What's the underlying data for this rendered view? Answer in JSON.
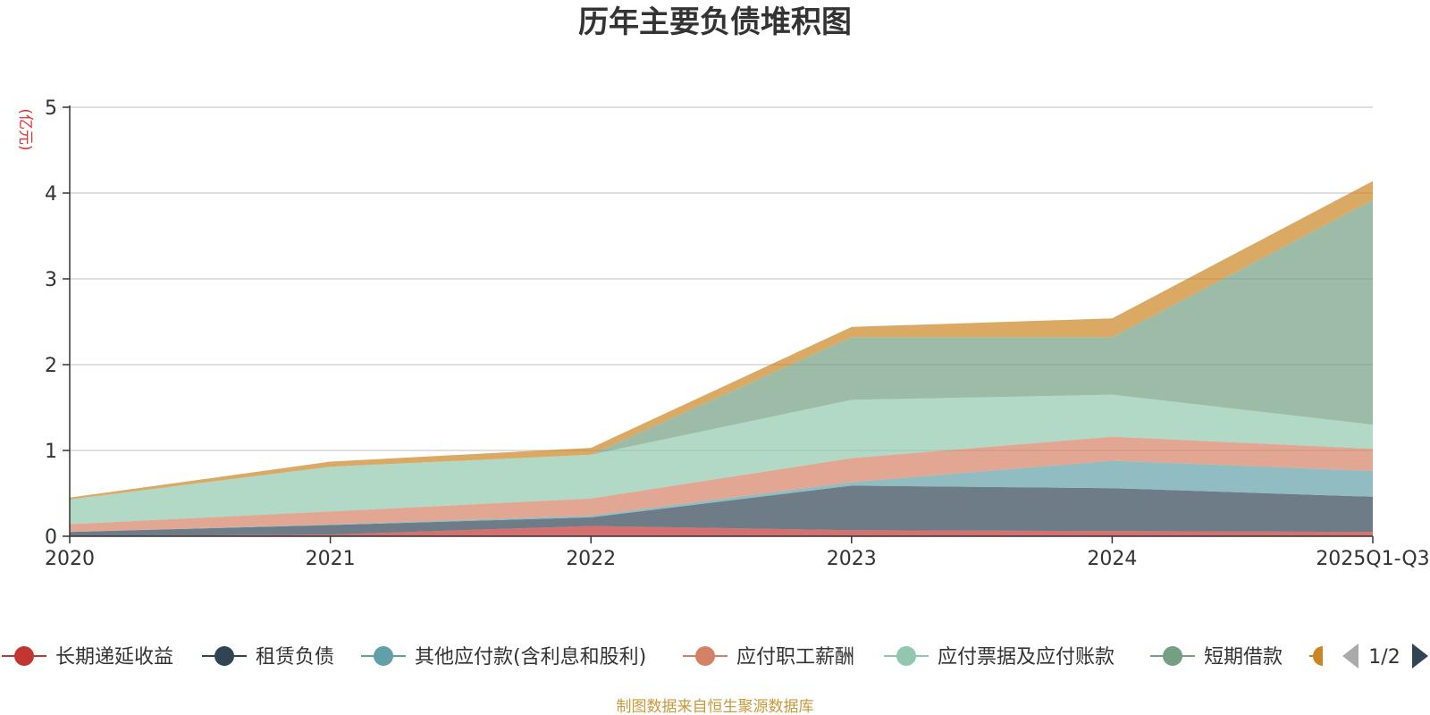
{
  "chart_data": {
    "type": "area",
    "stacked": true,
    "title": "历年主要负债堆积图",
    "unit_label": "(亿元)",
    "x": [
      "2020",
      "2021",
      "2022",
      "2023",
      "2024",
      "2025Q1-Q3"
    ],
    "ylim": [
      0,
      5
    ],
    "yticks": [
      "0",
      "1",
      "2",
      "3",
      "4",
      "5"
    ],
    "grid": true,
    "legend_position": "bottom",
    "series": [
      {
        "name": "长期递延收益",
        "color": "#c23531",
        "values": [
          0.0,
          0.02,
          0.12,
          0.07,
          0.06,
          0.05
        ]
      },
      {
        "name": "租赁负债",
        "color": "#2f4554",
        "values": [
          0.05,
          0.11,
          0.1,
          0.52,
          0.5,
          0.41
        ]
      },
      {
        "name": "其他应付款(含利息和股利)",
        "color": "#61a0a8",
        "values": [
          0.0,
          0.01,
          0.02,
          0.04,
          0.32,
          0.3
        ]
      },
      {
        "name": "应付职工薪酬",
        "color": "#d48265",
        "values": [
          0.09,
          0.15,
          0.2,
          0.28,
          0.28,
          0.26
        ]
      },
      {
        "name": "应付票据及应付账款",
        "color": "#91c7ae",
        "values": [
          0.29,
          0.52,
          0.51,
          0.68,
          0.49,
          0.28
        ]
      },
      {
        "name": "短期借款",
        "color": "#749f83",
        "values": [
          0.0,
          0.0,
          0.0,
          0.73,
          0.67,
          2.62
        ]
      },
      {
        "name": "",
        "color": "#ca8622",
        "values": [
          0.02,
          0.06,
          0.08,
          0.12,
          0.22,
          0.22
        ]
      }
    ]
  },
  "legend_page": "1/2",
  "source_text": "制图数据来自恒生聚源数据库"
}
